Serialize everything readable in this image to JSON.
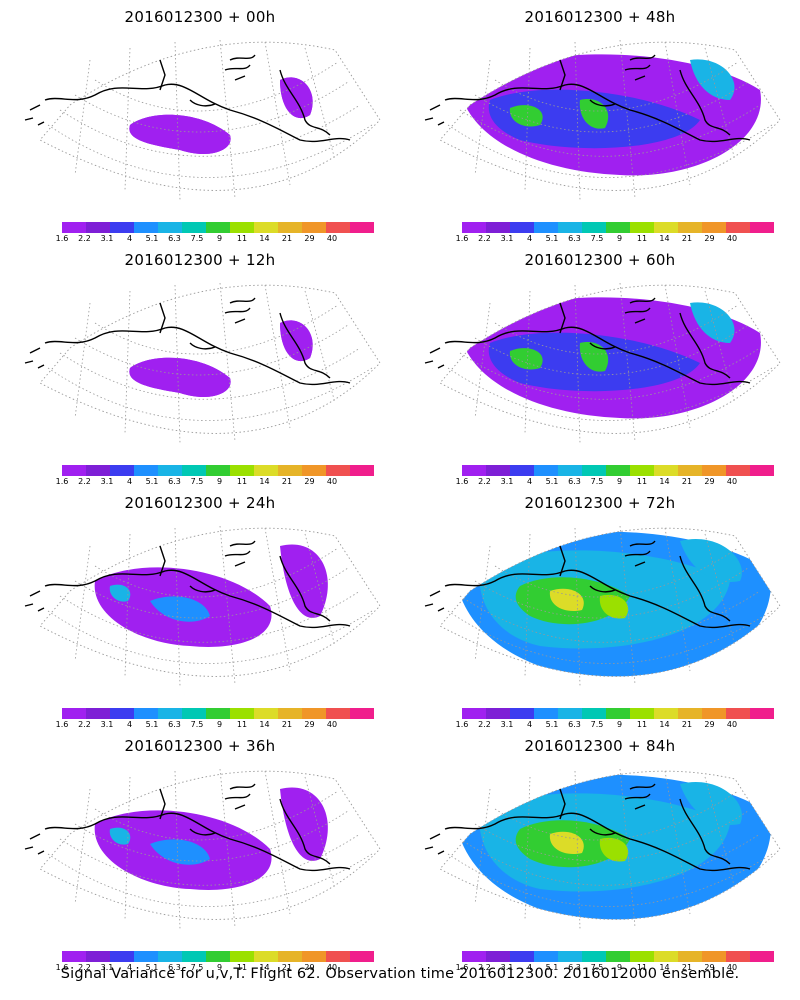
{
  "panels": [
    {
      "title": "2016012300 + 00h",
      "intensity": 0
    },
    {
      "title": "2016012300 + 48h",
      "intensity": 2
    },
    {
      "title": "2016012300 + 12h",
      "intensity": 0
    },
    {
      "title": "2016012300 + 60h",
      "intensity": 2
    },
    {
      "title": "2016012300 + 24h",
      "intensity": 1
    },
    {
      "title": "2016012300 + 72h",
      "intensity": 3
    },
    {
      "title": "2016012300 + 36h",
      "intensity": 1
    },
    {
      "title": "2016012300 + 84h",
      "intensity": 3
    }
  ],
  "colorbar": {
    "labels": [
      "1.6",
      "2.2",
      "3.1",
      "4",
      "5.1",
      "6.3",
      "7.5",
      "9",
      "11",
      "14",
      "21",
      "29",
      "40"
    ],
    "colors": [
      "#a020f0",
      "#7e1fd6",
      "#3c3cf0",
      "#1e90ff",
      "#19b4e6",
      "#00c8b4",
      "#32cd32",
      "#9be000",
      "#dcdc28",
      "#e6b428",
      "#f09628",
      "#f05050",
      "#f01e8c"
    ]
  },
  "footer": "Signal Variance for u,v,T. Flight 62. Observation time 2016012300. 2016012000 ensemble."
}
